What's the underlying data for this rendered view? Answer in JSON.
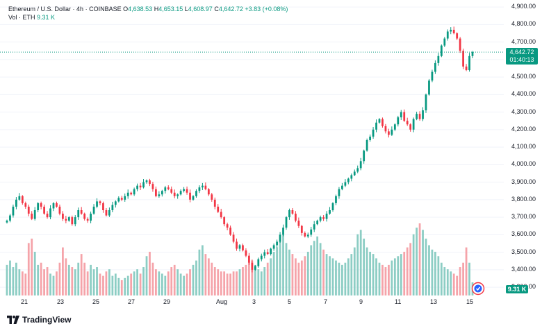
{
  "legend": {
    "symbol": "Ethereum / U.S. Dollar",
    "interval": "4h",
    "exchange": "COINBASE",
    "o_label": "O",
    "o_value": "4,638.53",
    "h_label": "H",
    "h_value": "4,653.15",
    "l_label": "L",
    "l_value": "4,608.97",
    "c_label": "C",
    "c_value": "4,642.72",
    "change": "+3.83 (+0.08%)",
    "vol_label": "Vol · ETH",
    "vol_value": "9.31 K"
  },
  "price_tag": {
    "price": "4,642.72",
    "countdown": "01:40:13"
  },
  "volume_tag": "9.31 K",
  "footer": {
    "brand": "TradingView"
  },
  "colors": {
    "up": "#089981",
    "down": "#F23645",
    "up_vol": "#8CCDC4",
    "down_vol": "#F5A3A9",
    "grid": "#F0F3FA"
  },
  "chart_data": {
    "type": "candlestick",
    "title": "Ethereum / U.S. Dollar · 4h · COINBASE",
    "price_axis_ticks": [
      "4,900.00",
      "4,800.00",
      "4,700.00",
      "4,600.00",
      "4,500.00",
      "4,400.00",
      "4,300.00",
      "4,200.00",
      "4,100.00",
      "4,000.00",
      "3,900.00",
      "3,800.00",
      "3,700.00",
      "3,600.00",
      "3,500.00",
      "3,400.00",
      "3,300.00"
    ],
    "time_axis_ticks": [
      "21",
      "23",
      "25",
      "27",
      "29",
      "Aug",
      "3",
      "5",
      "7",
      "9",
      "11",
      "13",
      "15"
    ],
    "ylim": [
      3245,
      4940
    ],
    "last_price": 4642.72,
    "closes": [
      3680,
      3710,
      3760,
      3800,
      3820,
      3780,
      3760,
      3720,
      3690,
      3740,
      3780,
      3760,
      3720,
      3700,
      3750,
      3780,
      3760,
      3720,
      3690,
      3680,
      3700,
      3660,
      3700,
      3740,
      3720,
      3690,
      3680,
      3720,
      3760,
      3790,
      3780,
      3740,
      3710,
      3740,
      3770,
      3790,
      3810,
      3800,
      3820,
      3840,
      3830,
      3860,
      3880,
      3870,
      3900,
      3910,
      3890,
      3860,
      3820,
      3830,
      3850,
      3870,
      3860,
      3840,
      3820,
      3830,
      3850,
      3860,
      3840,
      3800,
      3820,
      3850,
      3870,
      3880,
      3860,
      3830,
      3800,
      3760,
      3730,
      3700,
      3660,
      3640,
      3600,
      3560,
      3520,
      3540,
      3510,
      3480,
      3440,
      3400,
      3420,
      3460,
      3480,
      3500,
      3490,
      3520,
      3540,
      3560,
      3600,
      3640,
      3700,
      3740,
      3720,
      3680,
      3650,
      3610,
      3590,
      3600,
      3630,
      3660,
      3680,
      3700,
      3690,
      3720,
      3740,
      3780,
      3820,
      3860,
      3880,
      3900,
      3920,
      3940,
      3960,
      3980,
      4020,
      4080,
      4140,
      4160,
      4200,
      4240,
      4260,
      4220,
      4190,
      4170,
      4200,
      4230,
      4270,
      4300,
      4250,
      4230,
      4200,
      4260,
      4290,
      4260,
      4310,
      4400,
      4480,
      4530,
      4580,
      4620,
      4680,
      4720,
      4760,
      4770,
      4750,
      4720,
      4650,
      4560,
      4540,
      4620,
      4642.72
    ],
    "volumes": [
      28,
      32,
      26,
      30,
      24,
      22,
      20,
      48,
      52,
      40,
      28,
      30,
      24,
      26,
      20,
      18,
      22,
      30,
      44,
      34,
      28,
      26,
      24,
      30,
      38,
      30,
      22,
      28,
      24,
      26,
      20,
      18,
      22,
      24,
      18,
      20,
      16,
      14,
      16,
      18,
      20,
      22,
      24,
      20,
      26,
      36,
      40,
      30,
      24,
      22,
      20,
      18,
      22,
      26,
      28,
      24,
      20,
      18,
      20,
      24,
      28,
      32,
      42,
      46,
      38,
      34,
      30,
      26,
      24,
      22,
      22,
      20,
      20,
      22,
      22,
      24,
      26,
      28,
      30,
      32,
      28,
      24,
      22,
      26,
      30,
      34,
      40,
      44,
      50,
      56,
      48,
      42,
      38,
      34,
      30,
      32,
      36,
      40,
      46,
      50,
      54,
      48,
      42,
      38,
      36,
      34,
      32,
      30,
      28,
      30,
      34,
      38,
      44,
      56,
      60,
      52,
      44,
      40,
      38,
      34,
      30,
      28,
      26,
      28,
      32,
      34,
      36,
      38,
      40,
      44,
      48,
      56,
      62,
      66,
      60,
      52,
      46,
      42,
      40,
      36,
      30,
      26,
      24,
      22,
      20,
      18,
      26,
      30,
      44,
      30,
      12
    ]
  }
}
